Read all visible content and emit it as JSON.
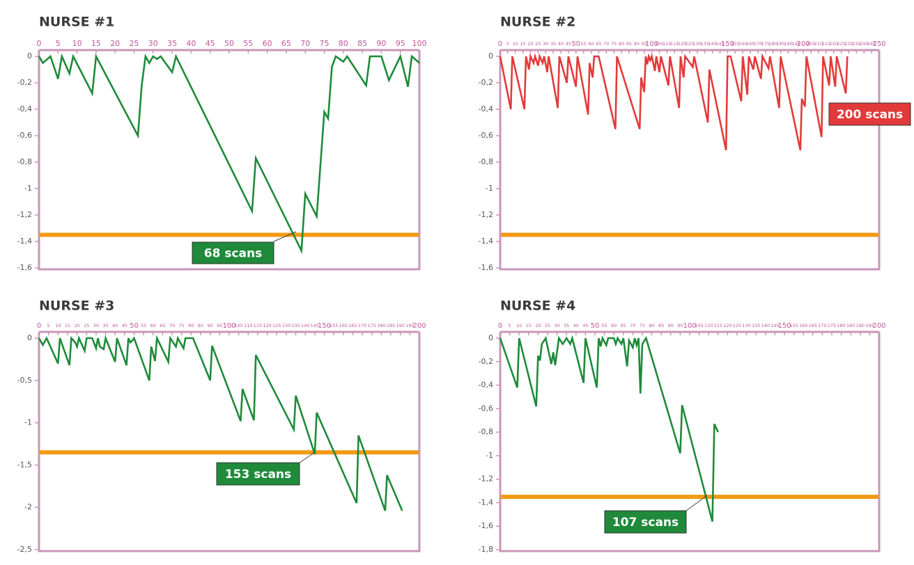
{
  "chart_data": [
    {
      "type": "line",
      "title": "NURSE #1",
      "color": "#1e8a3a",
      "threshold": -1.35,
      "threshold_color": "#f39a14",
      "annotation": "68 scans",
      "x": [
        0,
        1,
        3,
        5,
        6,
        8,
        9,
        14,
        15,
        26,
        27,
        28,
        29,
        30,
        31,
        32,
        35,
        36,
        56,
        57,
        69,
        70,
        73,
        75,
        76,
        77,
        78,
        80,
        81,
        86,
        87,
        90,
        92,
        95,
        97,
        98,
        100
      ],
      "values": [
        0,
        -0.05,
        0,
        -0.17,
        0,
        -0.13,
        0,
        -0.28,
        0,
        -0.6,
        -0.22,
        0,
        -0.05,
        0,
        -0.02,
        0,
        -0.12,
        0,
        -1.17,
        -0.77,
        -1.47,
        -1.04,
        -1.21,
        -0.42,
        -0.47,
        -0.08,
        0,
        -0.04,
        0,
        -0.22,
        0,
        0,
        -0.18,
        0,
        -0.23,
        0,
        -0.05
      ],
      "xlim": [
        0,
        100
      ],
      "xticks": [
        0,
        5,
        10,
        15,
        20,
        25,
        30,
        35,
        40,
        45,
        50,
        55,
        60,
        65,
        70,
        75,
        80,
        85,
        90,
        95,
        100
      ],
      "ylim": [
        -1.6,
        0
      ],
      "yticks": [
        0,
        {
          "value": -0.2,
          "label": "-0,2"
        },
        {
          "value": -0.4,
          "label": "-0,4"
        },
        {
          "value": -0.6,
          "label": "-0,6"
        },
        {
          "value": -0.8,
          "label": "-0,8"
        },
        -1,
        {
          "value": -1.2,
          "label": "-1,2"
        },
        {
          "value": -1.4,
          "label": "-1,4"
        },
        {
          "value": -1.6,
          "label": "-1,6"
        }
      ]
    },
    {
      "type": "line",
      "title": "NURSE #2",
      "color": "#e23a3a",
      "threshold": -1.35,
      "threshold_color": "#f39a14",
      "annotation": "200 scans",
      "x": [
        0,
        7,
        8,
        16,
        17,
        19,
        20,
        22,
        23,
        25,
        26,
        28,
        29,
        31,
        32,
        38,
        39,
        44,
        45,
        50,
        51,
        58,
        59,
        61,
        62,
        65,
        76,
        77,
        92,
        93,
        95,
        96,
        97,
        98,
        99,
        100,
        102,
        103,
        105,
        106,
        111,
        112,
        118,
        119,
        121,
        122,
        127,
        128,
        137,
        138,
        149,
        150,
        152,
        159,
        160,
        163,
        164,
        167,
        168,
        172,
        173,
        177,
        178,
        184,
        185,
        198,
        199,
        201,
        202,
        212,
        213,
        217,
        218,
        221,
        222,
        228,
        229
      ],
      "values": [
        0,
        -0.4,
        0,
        -0.4,
        0,
        -0.1,
        0,
        -0.05,
        0,
        -0.07,
        0,
        -0.05,
        0,
        -0.12,
        0,
        -0.39,
        0,
        -0.2,
        0,
        -0.23,
        0,
        -0.44,
        -0.05,
        -0.16,
        0,
        0,
        -0.55,
        0,
        -0.55,
        -0.16,
        -0.27,
        0,
        -0.06,
        0,
        -0.03,
        0,
        -0.11,
        0,
        -0.12,
        0,
        -0.22,
        0,
        -0.39,
        0,
        -0.16,
        0,
        -0.08,
        0,
        -0.5,
        -0.1,
        -0.71,
        0,
        0,
        -0.34,
        0,
        -0.29,
        0,
        -0.1,
        0,
        -0.17,
        0,
        -0.09,
        0,
        -0.39,
        0,
        -0.71,
        -0.32,
        -0.38,
        0,
        -0.61,
        0,
        -0.22,
        0,
        -0.23,
        0,
        -0.28,
        0
      ],
      "xlim": [
        0,
        250
      ],
      "xticks": [
        0,
        5,
        10,
        15,
        20,
        25,
        30,
        35,
        40,
        45,
        50,
        55,
        60,
        65,
        70,
        75,
        80,
        85,
        90,
        95,
        100,
        105,
        110,
        115,
        120,
        125,
        130,
        135,
        140,
        145,
        150,
        155,
        160,
        165,
        170,
        175,
        180,
        185,
        190,
        195,
        200,
        205,
        210,
        215,
        220,
        225,
        230,
        235,
        240,
        245,
        250
      ],
      "ylim": [
        -1.6,
        0
      ],
      "yticks": [
        0,
        {
          "value": -0.2,
          "label": "-0,2"
        },
        {
          "value": -0.4,
          "label": "-0,4"
        },
        {
          "value": -0.6,
          "label": "-0,6"
        },
        {
          "value": -0.8,
          "label": "-0,8"
        },
        -1,
        {
          "value": -1.2,
          "label": "-1,2"
        },
        {
          "value": -1.4,
          "label": "-1,4"
        },
        {
          "value": -1.6,
          "label": "-1,6"
        }
      ]
    },
    {
      "type": "line",
      "title": "NURSE #3",
      "color": "#1e8a3a",
      "threshold": -1.35,
      "threshold_color": "#f39a14",
      "annotation": "153 scans",
      "x": [
        0,
        2,
        4,
        10,
        11,
        16,
        17,
        19,
        20,
        21,
        24,
        25,
        28,
        30,
        31,
        32,
        34,
        35,
        40,
        41,
        46,
        47,
        48,
        49,
        50,
        58,
        59,
        61,
        62,
        68,
        69,
        72,
        73,
        76,
        77,
        81,
        90,
        91,
        106,
        107,
        113,
        114,
        134,
        135,
        145,
        146,
        167,
        168,
        182,
        183,
        191
      ],
      "values": [
        0,
        -0.08,
        0,
        -0.3,
        0,
        -0.32,
        0,
        -0.05,
        -0.1,
        0,
        -0.15,
        0,
        0,
        -0.12,
        0,
        -0.1,
        -0.13,
        0,
        -0.28,
        0,
        -0.32,
        0,
        -0.05,
        -0.03,
        0,
        -0.5,
        -0.1,
        -0.27,
        0,
        -0.28,
        0,
        -0.1,
        0,
        -0.12,
        0,
        0,
        -0.5,
        -0.09,
        -0.98,
        -0.6,
        -0.97,
        -0.2,
        -1.08,
        -0.68,
        -1.37,
        -0.88,
        -1.95,
        -1.15,
        -2.04,
        -1.62,
        -2.04
      ],
      "xlim": [
        0,
        200
      ],
      "xticks": [
        0,
        5,
        10,
        15,
        20,
        25,
        30,
        35,
        40,
        45,
        50,
        55,
        60,
        65,
        70,
        75,
        80,
        85,
        90,
        95,
        100,
        105,
        110,
        115,
        120,
        125,
        130,
        135,
        140,
        145,
        150,
        155,
        160,
        165,
        170,
        175,
        180,
        185,
        190,
        195,
        200
      ],
      "ylim": [
        -2.5,
        0
      ],
      "yticks": [
        0,
        {
          "value": -0.5,
          "label": "-0,5"
        },
        -1,
        {
          "value": -1.5,
          "label": "-1,5"
        },
        -2,
        {
          "value": -2.5,
          "label": "-2,5"
        }
      ]
    },
    {
      "type": "line",
      "title": "NURSE #4",
      "color": "#1e8a3a",
      "threshold": -1.35,
      "threshold_color": "#f39a14",
      "annotation": "107 scans",
      "x": [
        0,
        9,
        10,
        19,
        20,
        21,
        22,
        24,
        27,
        28,
        29,
        31,
        33,
        35,
        37,
        38,
        44,
        45,
        51,
        52,
        53,
        54,
        56,
        57,
        60,
        61,
        62,
        64,
        65,
        67,
        68,
        70,
        71,
        72,
        73,
        74,
        75,
        77,
        95,
        96,
        112,
        113,
        115
      ],
      "values": [
        0,
        -0.42,
        0,
        -0.58,
        -0.15,
        -0.19,
        -0.05,
        0,
        -0.22,
        -0.12,
        -0.23,
        0,
        -0.05,
        0,
        -0.05,
        0,
        -0.38,
        0,
        -0.42,
        0,
        -0.07,
        0,
        -0.06,
        0,
        0,
        -0.05,
        0,
        -0.05,
        0,
        -0.24,
        -0.02,
        -0.08,
        0,
        -0.06,
        0,
        -0.47,
        -0.05,
        0,
        -0.98,
        -0.57,
        -1.56,
        -0.73,
        -0.8
      ],
      "xlim": [
        0,
        200
      ],
      "xticks": [
        0,
        5,
        10,
        15,
        20,
        25,
        30,
        35,
        40,
        45,
        50,
        55,
        60,
        65,
        70,
        75,
        80,
        85,
        90,
        95,
        100,
        105,
        110,
        115,
        120,
        125,
        130,
        135,
        140,
        145,
        150,
        155,
        160,
        165,
        170,
        175,
        180,
        185,
        190,
        195,
        200
      ],
      "ylim": [
        -1.8,
        0
      ],
      "yticks": [
        0,
        {
          "value": -0.2,
          "label": "-0,2"
        },
        {
          "value": -0.4,
          "label": "-0,4"
        },
        {
          "value": -0.6,
          "label": "-0,6"
        },
        {
          "value": -0.8,
          "label": "-0,8"
        },
        -1,
        {
          "value": -1.2,
          "label": "-1,2"
        },
        {
          "value": -1.4,
          "label": "-1,4"
        },
        {
          "value": -1.6,
          "label": "-1,6"
        },
        {
          "value": -1.8,
          "label": "-1,8"
        }
      ]
    }
  ]
}
